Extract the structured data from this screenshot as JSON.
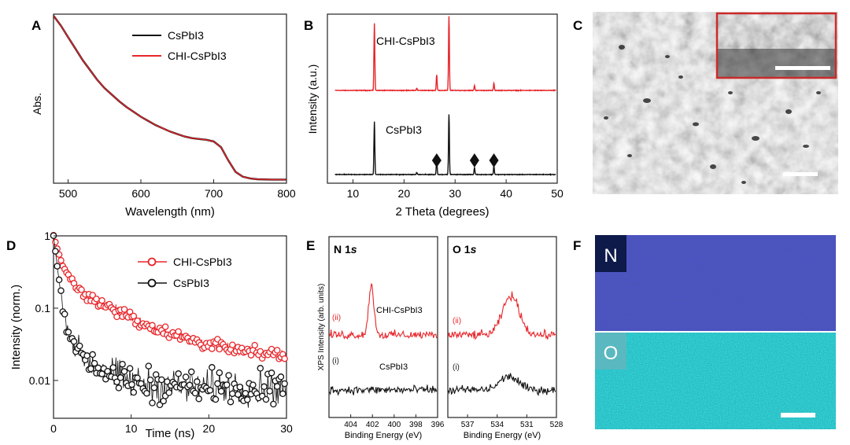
{
  "colors": {
    "black": "#111111",
    "red": "#e8262b",
    "sem": "#8a8a8a",
    "inset_border": "#cc2a2a",
    "edx_n": "#1e2a8c",
    "edx_o": "#1f9aa6"
  },
  "panels": {
    "A": {
      "letter": "A",
      "legend": [
        "CsPbI3",
        "CHI-CsPbI3"
      ]
    },
    "B": {
      "letter": "B",
      "annotations": [
        "CHI-CsPbI3",
        "CsPbI3"
      ]
    },
    "C": {
      "letter": "C",
      "icon": "sem-image",
      "inset_icon": "sem-cross-section"
    },
    "D": {
      "letter": "D",
      "legend": [
        "CHI-CsPbI3",
        "CsPbI3"
      ]
    },
    "E": {
      "letter": "E",
      "ylabel": "XPS Intensity (arb. units)",
      "left_title_main": "N 1",
      "left_title_sub": "s",
      "right_title_main": "O 1",
      "right_title_sub": "s",
      "curve_labels": [
        "(ii)",
        "(i)"
      ],
      "annotations": [
        "CHI-CsPbI3",
        "CsPbI3"
      ]
    },
    "F": {
      "letter": "F",
      "map_labels": [
        "N",
        "O"
      ],
      "icon": "edx-map"
    }
  },
  "chart_data": [
    {
      "panel": "A",
      "type": "line",
      "xlabel": "Wavelength (nm)",
      "ylabel": "Abs.",
      "xlim": [
        480,
        800
      ],
      "xticks": [
        500,
        600,
        700,
        800
      ],
      "yticks": [],
      "x": [
        480,
        490,
        500,
        510,
        520,
        530,
        540,
        550,
        560,
        570,
        580,
        590,
        600,
        610,
        620,
        630,
        640,
        650,
        660,
        670,
        680,
        690,
        700,
        710,
        720,
        730,
        740,
        750,
        760,
        780,
        800
      ],
      "series": [
        {
          "name": "CsPbI3",
          "color": "#111111",
          "y": [
            1.0,
            0.94,
            0.87,
            0.8,
            0.73,
            0.67,
            0.61,
            0.56,
            0.52,
            0.48,
            0.445,
            0.415,
            0.385,
            0.36,
            0.335,
            0.315,
            0.295,
            0.28,
            0.265,
            0.255,
            0.25,
            0.245,
            0.235,
            0.2,
            0.12,
            0.05,
            0.02,
            0.01,
            0.005,
            0.003,
            0.003
          ]
        },
        {
          "name": "CHI-CsPbI3",
          "color": "#e8262b",
          "y": [
            1.0,
            0.94,
            0.87,
            0.8,
            0.73,
            0.67,
            0.61,
            0.56,
            0.52,
            0.48,
            0.445,
            0.415,
            0.385,
            0.36,
            0.335,
            0.315,
            0.295,
            0.28,
            0.265,
            0.255,
            0.25,
            0.245,
            0.235,
            0.2,
            0.12,
            0.05,
            0.02,
            0.01,
            0.005,
            0.003,
            0.003
          ]
        }
      ]
    },
    {
      "panel": "B",
      "type": "line",
      "xlabel": "2 Theta (degrees)",
      "ylabel": "Intensity (a.u.)",
      "xlim": [
        5,
        50
      ],
      "xticks": [
        10,
        20,
        30,
        40,
        50
      ],
      "yticks": [],
      "series": [
        {
          "name": "CHI-CsPbI3",
          "color": "#e8262b",
          "offset": 1.0,
          "peaks": [
            [
              14.2,
              0.95
            ],
            [
              22.5,
              0.03
            ],
            [
              26.4,
              0.22
            ],
            [
              28.8,
              1.05
            ],
            [
              33.8,
              0.07
            ],
            [
              37.6,
              0.1
            ]
          ]
        },
        {
          "name": "CsPbI3",
          "color": "#111111",
          "offset": 0.0,
          "peaks": [
            [
              14.2,
              0.75
            ],
            [
              22.5,
              0.03
            ],
            [
              26.4,
              0.22
            ],
            [
              28.8,
              0.85
            ],
            [
              33.8,
              0.1
            ],
            [
              37.6,
              0.12
            ]
          ]
        }
      ],
      "markers": [
        26.4,
        33.8,
        37.6
      ]
    },
    {
      "panel": "D",
      "type": "scatter",
      "xlabel": "Time (ns)",
      "ylabel": "Intensity (norm.)",
      "xlim": [
        0,
        30
      ],
      "ylim": [
        0.003,
        1
      ],
      "yscale": "log",
      "xticks": [
        0,
        10,
        20,
        30
      ],
      "yticks": [
        1,
        0.1,
        0.01
      ],
      "series": [
        {
          "name": "CHI-CsPbI3",
          "color": "#e8262b",
          "a1": 0.75,
          "tau1": 0.8,
          "a2": 0.25,
          "tau2": 6.5,
          "floor": 0.02
        },
        {
          "name": "CsPbI3",
          "color": "#111111",
          "a1": 0.95,
          "tau1": 0.45,
          "a2": 0.05,
          "tau2": 3.0,
          "floor": 0.008
        }
      ]
    },
    {
      "panel": "E-N1s",
      "type": "line",
      "xlabel": "Binding Energy (eV)",
      "xlim": [
        406,
        396
      ],
      "xticks": [
        404,
        402,
        400,
        398,
        396
      ],
      "series": [
        {
          "name": "CHI-CsPbI3",
          "color": "#e8262b",
          "peak": 402.1,
          "height": 1.0,
          "width": 0.35
        },
        {
          "name": "CsPbI3",
          "color": "#111111",
          "peak": null,
          "height": 0,
          "width": 0
        }
      ]
    },
    {
      "panel": "E-O1s",
      "type": "line",
      "xlabel": "Binding Energy (eV)",
      "xlim": [
        539,
        528
      ],
      "xticks": [
        537,
        534,
        531,
        528
      ],
      "series": [
        {
          "name": "CHI-CsPbI3",
          "color": "#e8262b",
          "peak": 532.6,
          "height": 0.8,
          "width": 1.2
        },
        {
          "name": "CsPbI3",
          "color": "#111111",
          "peak": 532.8,
          "height": 0.28,
          "width": 1.3
        }
      ]
    }
  ]
}
